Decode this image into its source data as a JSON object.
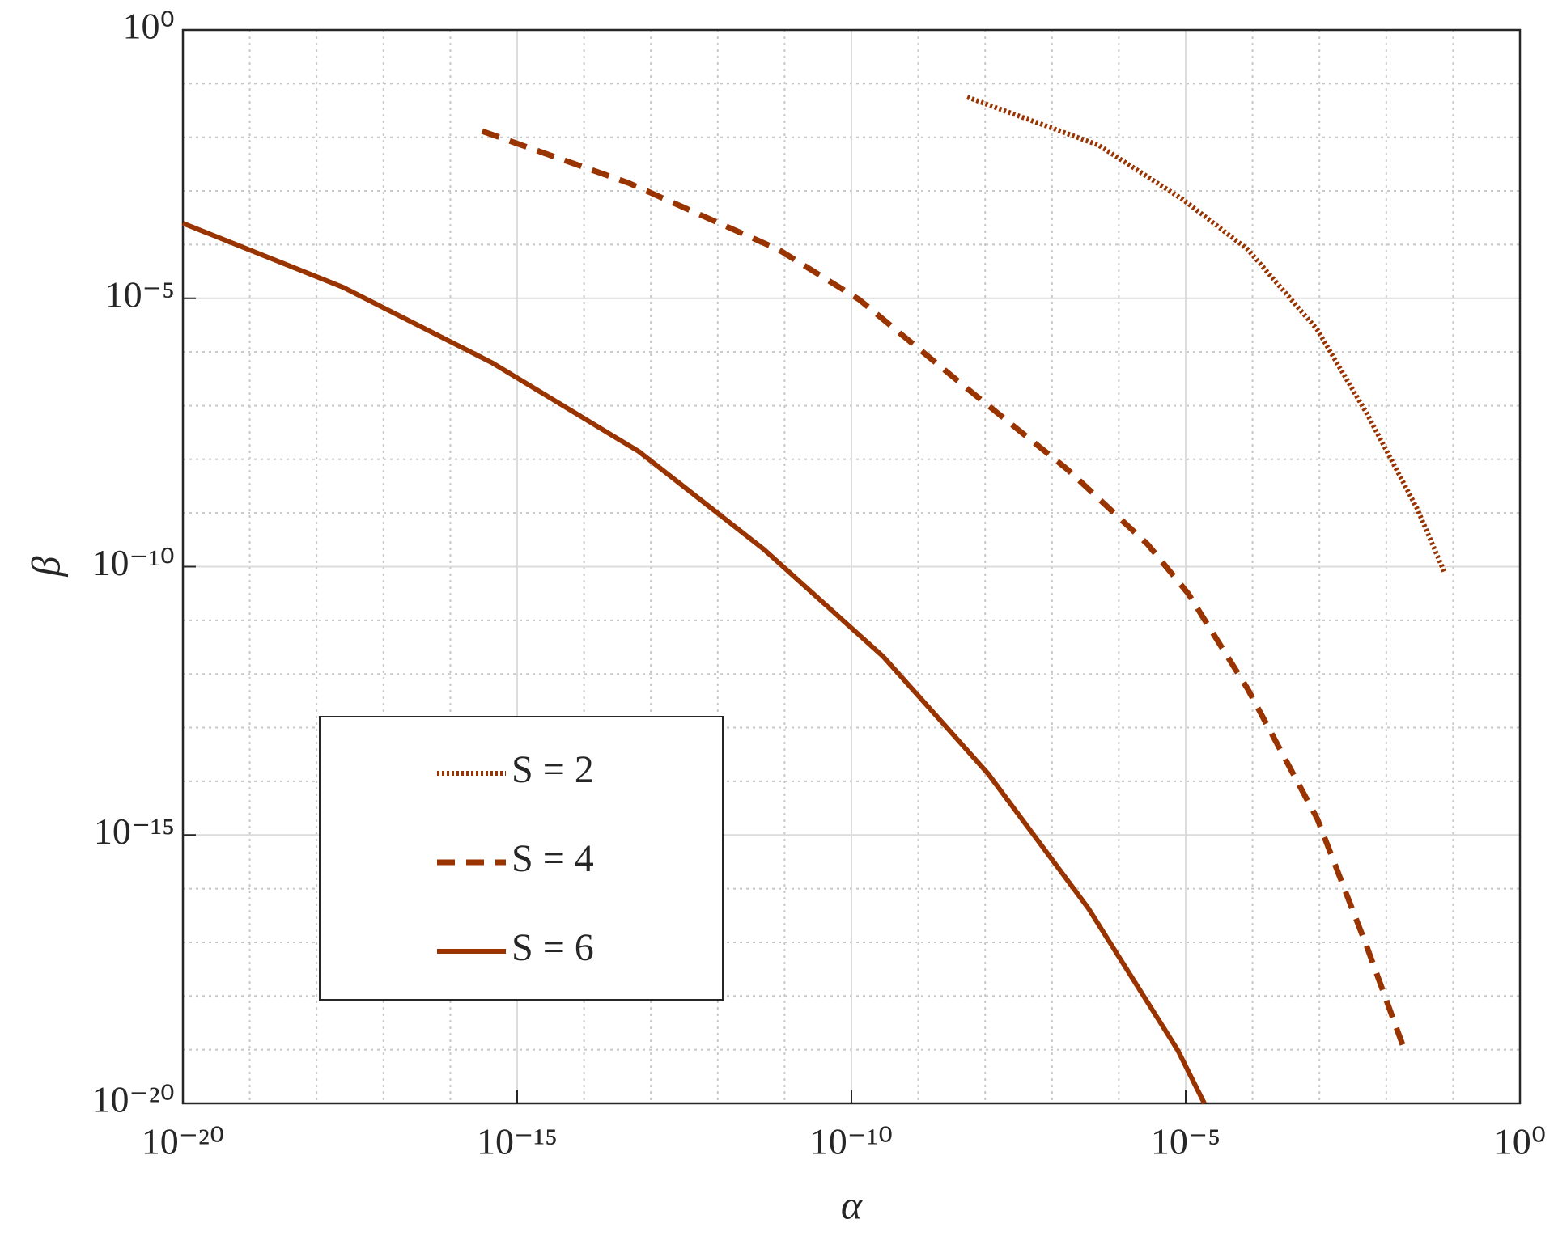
{
  "chart_data": {
    "type": "line",
    "xlabel": "α",
    "ylabel": "β",
    "xscale": "log",
    "yscale": "log",
    "grid": true,
    "minor_grid": true,
    "xlim": [
      1e-20,
      1
    ],
    "ylim": [
      1e-20,
      1
    ],
    "xticks": [
      {
        "value": 1e-20,
        "label": "10⁻²⁰"
      },
      {
        "value": 1e-15,
        "label": "10⁻¹⁵"
      },
      {
        "value": 1e-10,
        "label": "10⁻¹⁰"
      },
      {
        "value": 1e-05,
        "label": "10⁻⁵"
      },
      {
        "value": 1,
        "label": "10⁰"
      }
    ],
    "yticks": [
      {
        "value": 1e-20,
        "label": "10⁻²⁰"
      },
      {
        "value": 1e-15,
        "label": "10⁻¹⁵"
      },
      {
        "value": 1e-10,
        "label": "10⁻¹⁰"
      },
      {
        "value": 1e-05,
        "label": "10⁻⁵"
      },
      {
        "value": 1,
        "label": "10⁰"
      }
    ],
    "xminorticks": [
      1e-19,
      1e-18,
      1e-17,
      1e-16,
      1e-14,
      1e-13,
      1e-12,
      1e-11,
      1e-09,
      1e-08,
      1e-07,
      1e-06,
      0.0001,
      0.001,
      0.01,
      0.1
    ],
    "yminorticks": [
      1e-19,
      1e-18,
      1e-17,
      1e-16,
      1e-14,
      1e-13,
      1e-12,
      1e-11,
      1e-09,
      1e-08,
      1e-07,
      1e-06,
      0.0001,
      0.001,
      0.01,
      0.1
    ],
    "legend": "lower left",
    "series": [
      {
        "name": "S = 2",
        "color": "#993300",
        "style": "dotted",
        "x": [
          5.4e-09,
          4.9e-07,
          9.1e-06,
          8.5e-05,
          0.00093,
          0.0052,
          0.029,
          0.074
        ],
        "values": [
          0.056,
          0.0072,
          0.00069,
          8.1e-05,
          2.6e-06,
          6.9e-08,
          1.2e-09,
          7.9e-11
        ]
      },
      {
        "name": "S = 4",
        "color": "#993300",
        "style": "dashed",
        "x": [
          3e-16,
          4.7e-14,
          8.1e-12,
          1.3e-10,
          5.6e-09,
          1.7e-07,
          2.7e-06,
          1.1e-05,
          8.5e-05,
          0.00093,
          0.0052,
          0.02
        ],
        "values": [
          0.013,
          0.0014,
          8.1e-05,
          9.5e-06,
          2e-07,
          6.5e-09,
          2.6e-10,
          3.1e-11,
          5.2e-13,
          2e-15,
          7.9e-18,
          7.9e-20
        ]
      },
      {
        "name": "S = 6",
        "color": "#993300",
        "style": "solid",
        "x": [
          1e-20,
          2.5e-18,
          4.3e-16,
          6.6e-14,
          4.9e-12,
          3e-10,
          1.1e-08,
          3.5e-07,
          7.6e-06,
          1.9e-05
        ],
        "values": [
          0.00025,
          1.6e-05,
          6.2e-07,
          1.4e-08,
          2.1e-10,
          2.1e-12,
          1.4e-14,
          4.3e-17,
          9.8e-20,
          1e-20
        ]
      }
    ]
  }
}
